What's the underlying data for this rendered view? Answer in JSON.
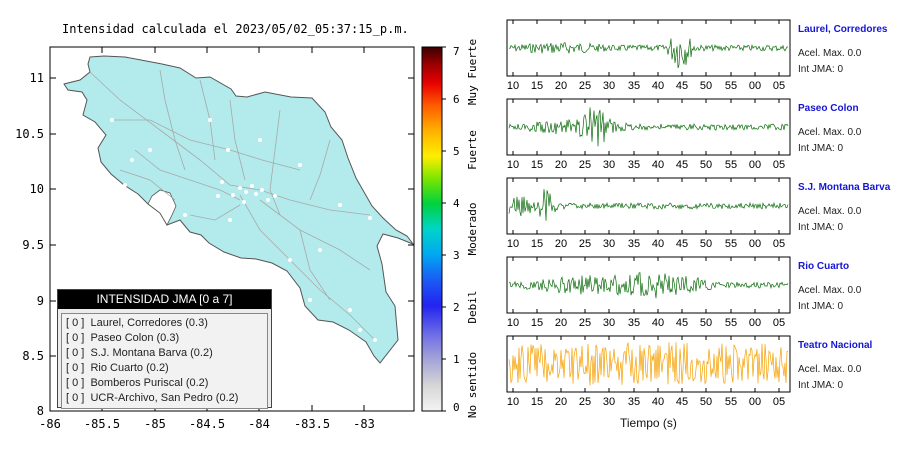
{
  "map": {
    "title": "Intensidad calculada el 2023/05/02_05:37:15_p.m.",
    "x_ticks": [
      "-86",
      "-85.5",
      "-85",
      "-84.5",
      "-84",
      "-83.5",
      "-83"
    ],
    "y_ticks": [
      "11",
      "10.5",
      "10",
      "9.5",
      "9",
      "8.5",
      "8"
    ]
  },
  "colorbar": {
    "ticks": [
      "0",
      "1",
      "2",
      "3",
      "4",
      "5",
      "6",
      "7"
    ],
    "labels": [
      "No sentido",
      "Debil",
      "Moderado",
      "Fuerte",
      "Muy Fuerte"
    ]
  },
  "legend": {
    "header": "INTENSIDAD JMA [0 a 7]",
    "items": [
      {
        "level": "[ 0 ]",
        "label": "Laurel, Corredores (0.3)"
      },
      {
        "level": "[ 0 ]",
        "label": "Paseo Colon (0.3)"
      },
      {
        "level": "[ 0 ]",
        "label": "S.J. Montana Barva (0.2)"
      },
      {
        "level": "[ 0 ]",
        "label": "Rio Cuarto (0.2)"
      },
      {
        "level": "[ 0 ]",
        "label": "Bomberos Puriscal (0.2)"
      },
      {
        "level": "[ 0 ]",
        "label": "UCR-Archivo, San Pedro (0.2)"
      }
    ]
  },
  "waveforms": {
    "x_ticks": [
      "10",
      "15",
      "20",
      "25",
      "30",
      "35",
      "40",
      "45",
      "50",
      "55",
      "00",
      "05"
    ],
    "x_title": "Tiempo (s)",
    "stations": [
      {
        "name": "Laurel, Corredores",
        "acel": "Acel. Max. 0.0",
        "jma": "Int JMA: 0",
        "color": "#0a6b0a"
      },
      {
        "name": "Paseo Colon",
        "acel": "Acel. Max. 0.0",
        "jma": "Int JMA: 0",
        "color": "#0a6b0a"
      },
      {
        "name": "S.J. Montana Barva",
        "acel": "Acel. Max. 0.0",
        "jma": "Int JMA: 0",
        "color": "#0a6b0a"
      },
      {
        "name": "Rio Cuarto",
        "acel": "Acel. Max. 0.0",
        "jma": "Int JMA: 0",
        "color": "#0a6b0a"
      },
      {
        "name": "Teatro Nacional",
        "acel": "Acel. Max. 0.0",
        "jma": "Int JMA: 0",
        "color": "#f5a000"
      }
    ]
  },
  "colors": {
    "land": "#b3ebec",
    "roads": "#a8a8a8",
    "border": "#555555"
  }
}
